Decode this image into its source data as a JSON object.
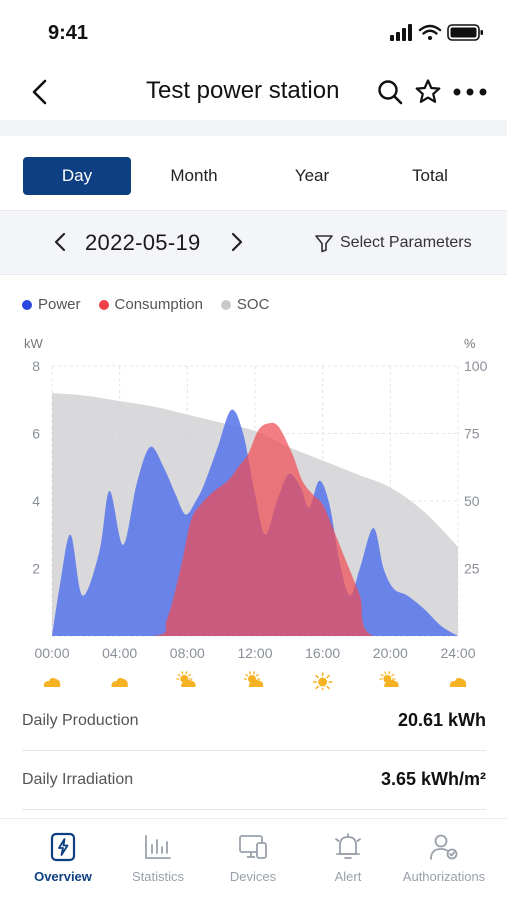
{
  "status": {
    "time": "9:41"
  },
  "nav": {
    "title": "Test power station"
  },
  "tabs": [
    {
      "label": "Day",
      "active": true
    },
    {
      "label": "Month",
      "active": false
    },
    {
      "label": "Year",
      "active": false
    },
    {
      "label": "Total",
      "active": false
    }
  ],
  "date": {
    "value": "2022-05-19",
    "select_label": "Select Parameters"
  },
  "colors": {
    "accent": "#0f3f83",
    "power": "#5a76ea",
    "consumption": "#ef4e55",
    "soc": "#cfcfd2",
    "weather": "#f5b324"
  },
  "chart_data": {
    "type": "area",
    "legend": [
      "Power",
      "Consumption",
      "SOC"
    ],
    "legend_placement": "top-left",
    "y_left_unit": "kW",
    "y_right_unit": "%",
    "y_left_ticks": [
      "8",
      "6",
      "4",
      "2"
    ],
    "y_right_ticks": [
      "100",
      "75",
      "50",
      "25"
    ],
    "ylim_left": [
      0,
      8
    ],
    "ylim_right": [
      0,
      100
    ],
    "x_ticks": [
      "00:00",
      "04:00",
      "08:00",
      "12:00",
      "16:00",
      "20:00",
      "24:00"
    ],
    "xlim_hours": [
      0,
      24
    ],
    "weather_icons": [
      "cloudy-icon",
      "cloudy-icon",
      "partly-sunny-icon",
      "partly-sunny-icon",
      "sunny-icon",
      "partly-sunny-icon",
      "cloudy-icon"
    ],
    "series": [
      {
        "name": "Power",
        "axis": "left",
        "x": [
          0,
          0.5,
          1.1,
          1.8,
          2.8,
          3.4,
          4.2,
          5.0,
          5.8,
          6.6,
          7.3,
          7.9,
          8.5,
          9.0,
          9.8,
          10.6,
          11.3,
          12.0,
          12.6,
          13.3,
          14.0,
          14.7,
          15.2,
          15.8,
          16.4,
          17.0,
          17.6,
          18.2,
          19.0,
          19.6,
          20.2,
          21.0,
          22.0,
          23.0,
          24.0
        ],
        "y": [
          0,
          1.6,
          3.0,
          1.2,
          2.5,
          4.3,
          2.7,
          4.5,
          5.6,
          5.0,
          4.2,
          3.6,
          4.0,
          4.5,
          5.6,
          6.7,
          6.0,
          4.2,
          3.0,
          4.0,
          4.8,
          4.4,
          3.8,
          4.6,
          3.9,
          2.2,
          1.2,
          2.0,
          3.2,
          2.0,
          1.4,
          1.2,
          0.8,
          0.3,
          0
        ]
      },
      {
        "name": "Consumption",
        "axis": "left",
        "x": [
          0,
          6.0,
          6.8,
          7.6,
          8.2,
          8.8,
          9.6,
          10.4,
          11.0,
          11.6,
          12.2,
          12.8,
          13.4,
          14.2,
          14.8,
          15.4,
          16.0,
          16.6,
          17.4,
          18.2,
          19.0,
          24.0
        ],
        "y": [
          0,
          0,
          0.5,
          2.0,
          3.4,
          3.9,
          4.3,
          4.6,
          5.0,
          5.4,
          6.1,
          6.3,
          6.2,
          5.4,
          4.6,
          4.2,
          3.9,
          3.2,
          2.2,
          1.2,
          0,
          0
        ]
      },
      {
        "name": "SOC",
        "axis": "right",
        "x": [
          0,
          2,
          4,
          6,
          8,
          10,
          12,
          14,
          16,
          18,
          20,
          22,
          24
        ],
        "y": [
          90,
          89,
          87,
          85,
          82,
          79,
          76,
          70,
          65,
          60,
          55,
          46,
          33
        ]
      }
    ]
  },
  "info": [
    {
      "label": "Daily Production",
      "value": "20.61 kWh"
    },
    {
      "label": "Daily Irradiation",
      "value": "3.65 kWh/m²"
    }
  ],
  "tabbar": [
    {
      "label": "Overview",
      "icon": "overview-icon",
      "active": true
    },
    {
      "label": "Statistics",
      "icon": "statistics-icon",
      "active": false
    },
    {
      "label": "Devices",
      "icon": "devices-icon",
      "active": false
    },
    {
      "label": "Alert",
      "icon": "alert-icon",
      "active": false
    },
    {
      "label": "Authorizations",
      "icon": "authorizations-icon",
      "active": false
    }
  ]
}
